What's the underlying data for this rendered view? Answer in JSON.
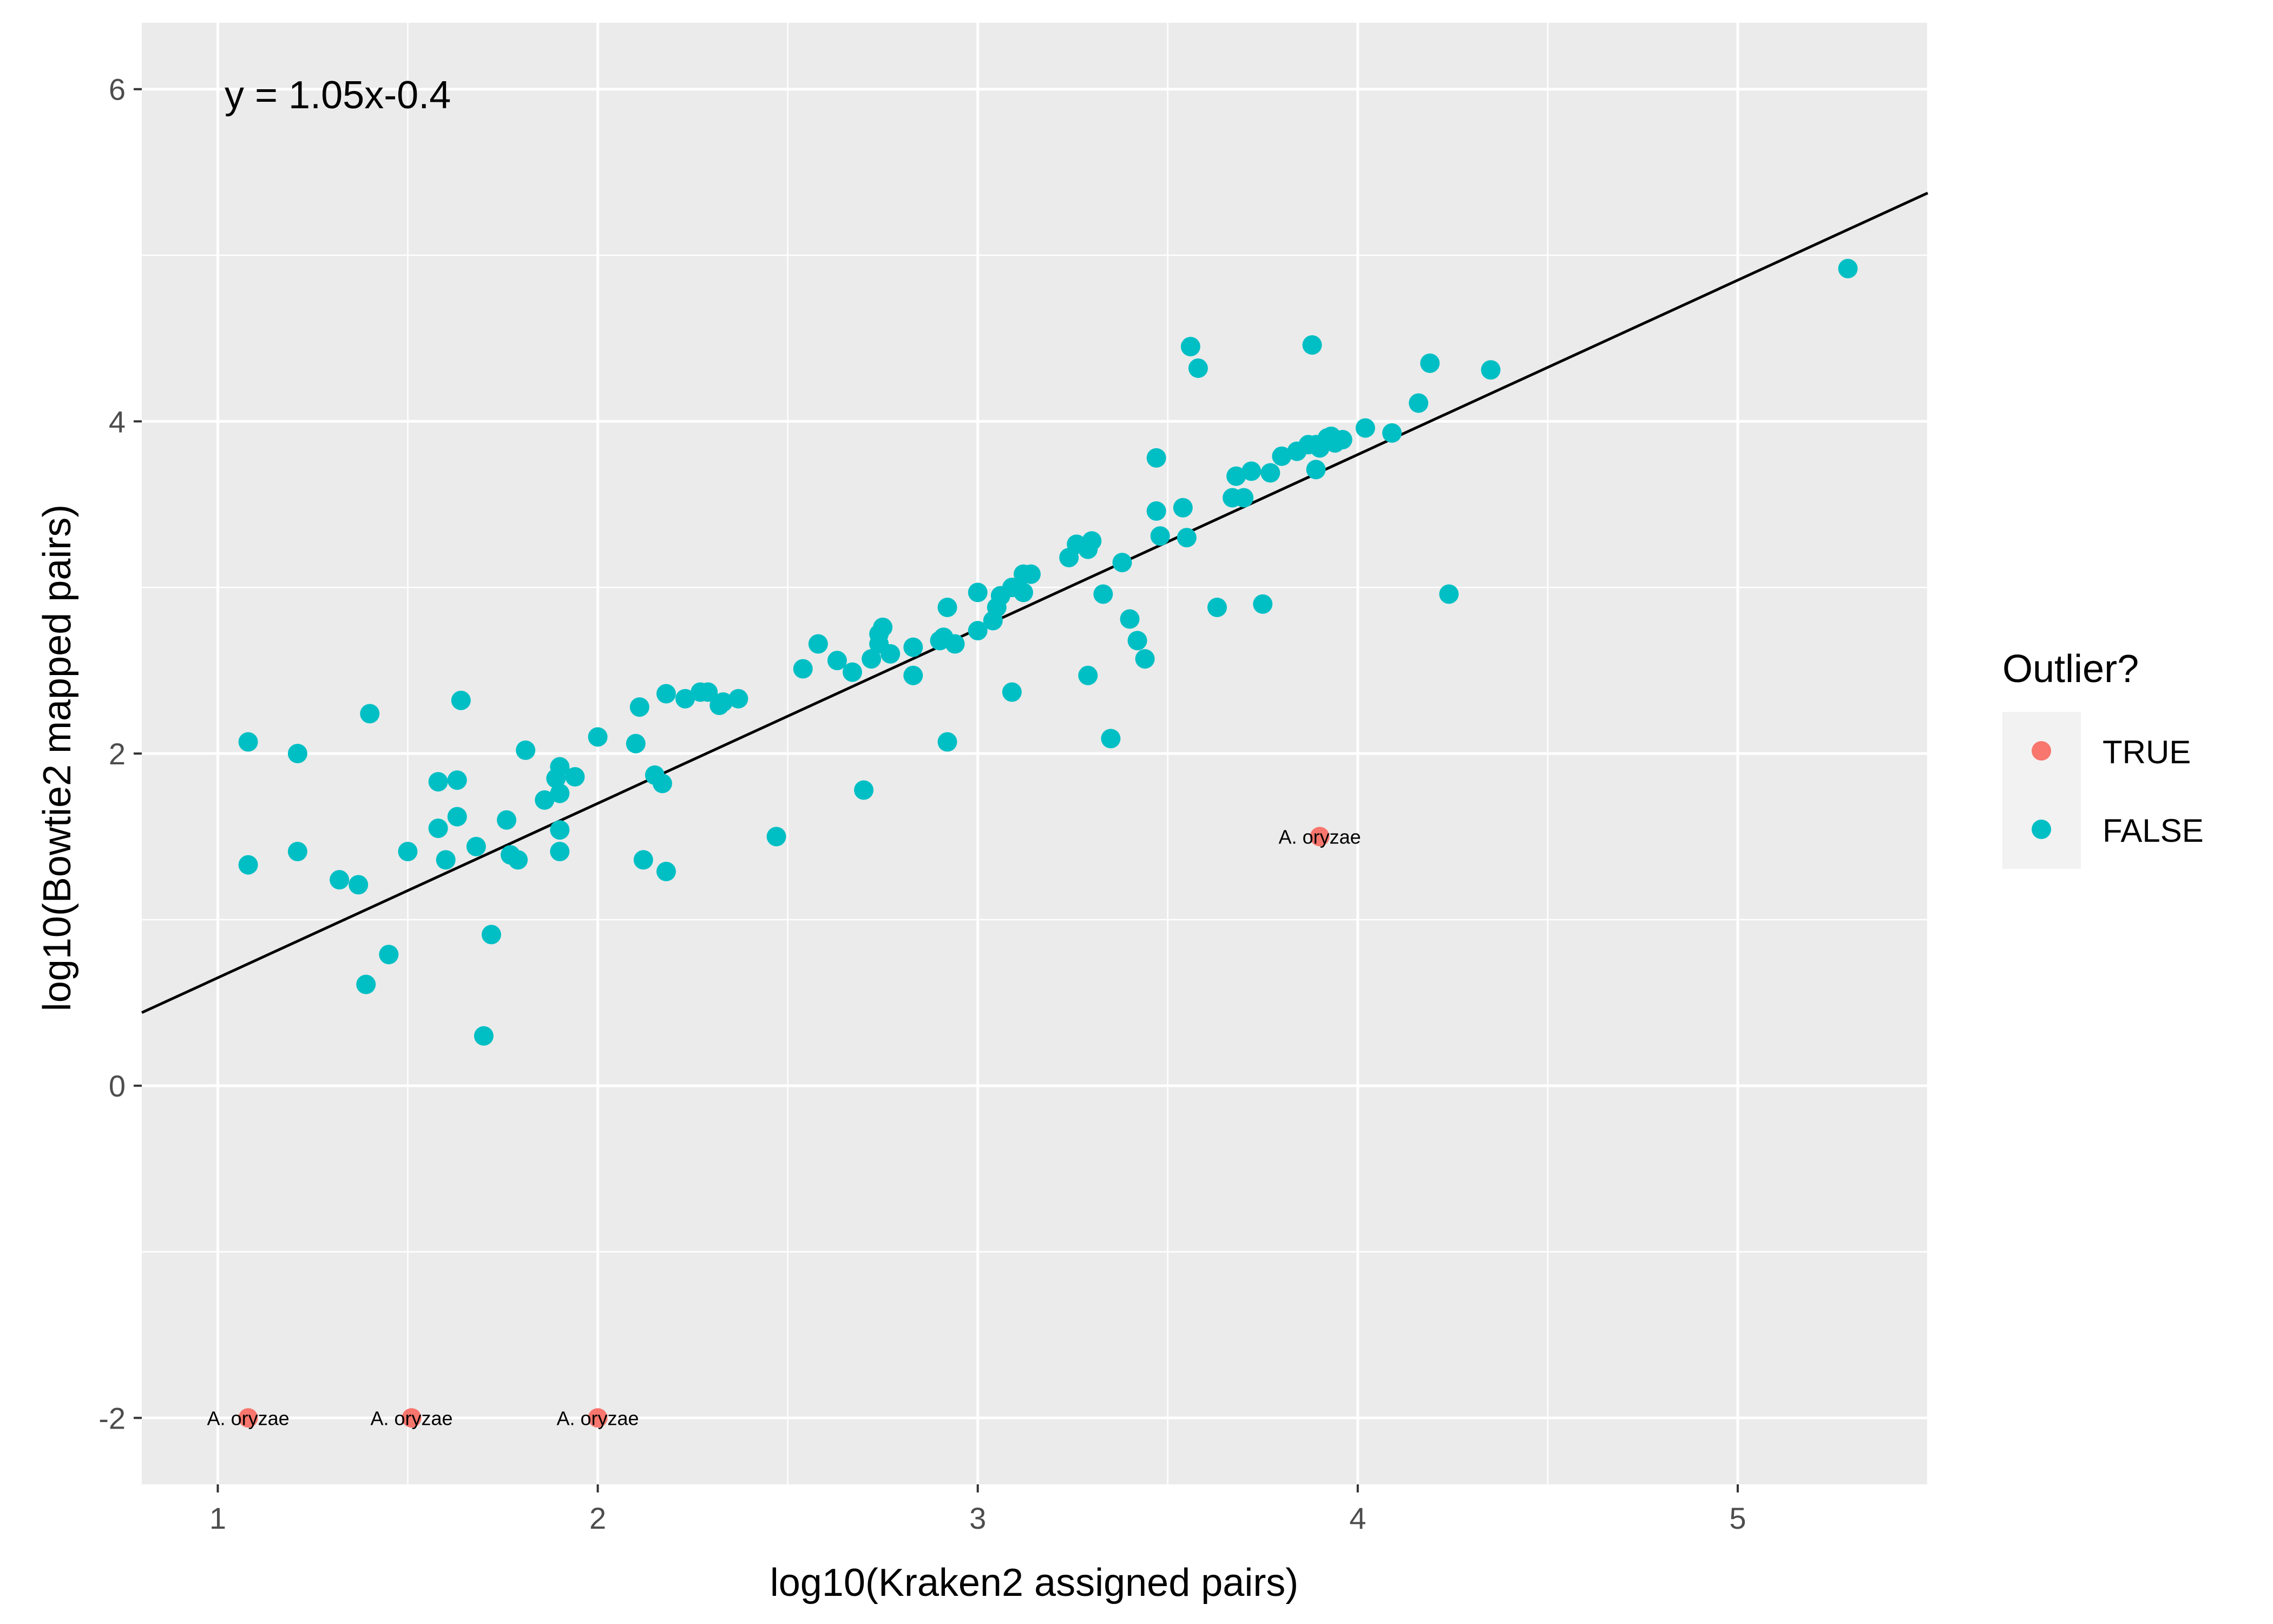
{
  "chart_data": {
    "type": "scatter",
    "xlabel": "log10(Kraken2 assigned pairs)",
    "ylabel": "log10(Bowtie2 mapped pairs)",
    "xlim": [
      0.8,
      5.5
    ],
    "ylim": [
      -2.4,
      6.4
    ],
    "xticks": [
      1,
      2,
      3,
      4,
      5
    ],
    "yticks": [
      -2,
      0,
      2,
      4,
      6
    ],
    "xtick_labels": [
      "1",
      "2",
      "3",
      "4",
      "5"
    ],
    "ytick_labels": [
      "-2",
      "0",
      "2",
      "4",
      "6"
    ],
    "grid": true,
    "legend": {
      "title": "Outlier?",
      "position": "right",
      "entries": [
        {
          "label": "TRUE",
          "color": "#F8766D"
        },
        {
          "label": "FALSE",
          "color": "#00BFC4"
        }
      ]
    },
    "equation": "y = 1.05x-0.4",
    "fit_line": {
      "slope": 1.05,
      "intercept": -0.4
    },
    "series": [
      {
        "name": "TRUE",
        "color": "#F8766D",
        "points": [
          {
            "x": 3.9,
            "y": 1.5,
            "label": "A. oryzae"
          },
          {
            "x": 1.08,
            "y": -2.0,
            "label": "A. oryzae"
          },
          {
            "x": 1.51,
            "y": -2.0,
            "label": "A. oryzae"
          },
          {
            "x": 2.0,
            "y": -2.0,
            "label": "A. oryzae"
          }
        ]
      },
      {
        "name": "FALSE",
        "color": "#00BFC4",
        "points": [
          {
            "x": 1.08,
            "y": 2.07
          },
          {
            "x": 1.08,
            "y": 1.33
          },
          {
            "x": 1.21,
            "y": 2.0
          },
          {
            "x": 1.21,
            "y": 1.41
          },
          {
            "x": 1.32,
            "y": 1.24
          },
          {
            "x": 1.37,
            "y": 1.21
          },
          {
            "x": 1.39,
            "y": 0.61
          },
          {
            "x": 1.4,
            "y": 2.24
          },
          {
            "x": 1.45,
            "y": 0.79
          },
          {
            "x": 1.5,
            "y": 1.41
          },
          {
            "x": 1.58,
            "y": 1.55
          },
          {
            "x": 1.58,
            "y": 1.83
          },
          {
            "x": 1.6,
            "y": 1.36
          },
          {
            "x": 1.63,
            "y": 1.84
          },
          {
            "x": 1.63,
            "y": 1.62
          },
          {
            "x": 1.64,
            "y": 2.32
          },
          {
            "x": 1.68,
            "y": 1.44
          },
          {
            "x": 1.7,
            "y": 0.3
          },
          {
            "x": 1.72,
            "y": 0.91
          },
          {
            "x": 1.76,
            "y": 1.6
          },
          {
            "x": 1.77,
            "y": 1.39
          },
          {
            "x": 1.79,
            "y": 1.36
          },
          {
            "x": 1.81,
            "y": 2.02
          },
          {
            "x": 1.86,
            "y": 1.72
          },
          {
            "x": 1.89,
            "y": 1.85
          },
          {
            "x": 1.9,
            "y": 1.92
          },
          {
            "x": 1.9,
            "y": 1.76
          },
          {
            "x": 1.9,
            "y": 1.54
          },
          {
            "x": 1.9,
            "y": 1.41
          },
          {
            "x": 1.94,
            "y": 1.86
          },
          {
            "x": 2.0,
            "y": 2.1
          },
          {
            "x": 2.1,
            "y": 2.06
          },
          {
            "x": 2.11,
            "y": 2.28
          },
          {
            "x": 2.12,
            "y": 1.36
          },
          {
            "x": 2.15,
            "y": 1.87
          },
          {
            "x": 2.17,
            "y": 1.82
          },
          {
            "x": 2.18,
            "y": 2.36
          },
          {
            "x": 2.18,
            "y": 1.29
          },
          {
            "x": 2.23,
            "y": 2.33
          },
          {
            "x": 2.27,
            "y": 2.37
          },
          {
            "x": 2.29,
            "y": 2.37
          },
          {
            "x": 2.32,
            "y": 2.29
          },
          {
            "x": 2.33,
            "y": 2.31
          },
          {
            "x": 2.37,
            "y": 2.33
          },
          {
            "x": 2.47,
            "y": 1.5
          },
          {
            "x": 2.54,
            "y": 2.51
          },
          {
            "x": 2.58,
            "y": 2.66
          },
          {
            "x": 2.63,
            "y": 2.56
          },
          {
            "x": 2.67,
            "y": 2.49
          },
          {
            "x": 2.7,
            "y": 1.78
          },
          {
            "x": 2.72,
            "y": 2.57
          },
          {
            "x": 2.74,
            "y": 2.72
          },
          {
            "x": 2.74,
            "y": 2.66
          },
          {
            "x": 2.75,
            "y": 2.76
          },
          {
            "x": 2.77,
            "y": 2.6
          },
          {
            "x": 2.83,
            "y": 2.47
          },
          {
            "x": 2.83,
            "y": 2.64
          },
          {
            "x": 2.9,
            "y": 2.68
          },
          {
            "x": 2.91,
            "y": 2.7
          },
          {
            "x": 2.92,
            "y": 2.88
          },
          {
            "x": 2.92,
            "y": 2.07
          },
          {
            "x": 2.94,
            "y": 2.66
          },
          {
            "x": 3.0,
            "y": 2.74
          },
          {
            "x": 3.0,
            "y": 2.97
          },
          {
            "x": 3.04,
            "y": 2.8
          },
          {
            "x": 3.05,
            "y": 2.88
          },
          {
            "x": 3.06,
            "y": 2.95
          },
          {
            "x": 3.09,
            "y": 2.37
          },
          {
            "x": 3.09,
            "y": 3.0
          },
          {
            "x": 3.12,
            "y": 3.08
          },
          {
            "x": 3.12,
            "y": 2.97
          },
          {
            "x": 3.14,
            "y": 3.08
          },
          {
            "x": 3.24,
            "y": 3.18
          },
          {
            "x": 3.26,
            "y": 3.26
          },
          {
            "x": 3.29,
            "y": 3.23
          },
          {
            "x": 3.29,
            "y": 2.47
          },
          {
            "x": 3.3,
            "y": 3.28
          },
          {
            "x": 3.33,
            "y": 2.96
          },
          {
            "x": 3.35,
            "y": 2.09
          },
          {
            "x": 3.38,
            "y": 3.15
          },
          {
            "x": 3.4,
            "y": 2.81
          },
          {
            "x": 3.42,
            "y": 2.68
          },
          {
            "x": 3.44,
            "y": 2.57
          },
          {
            "x": 3.47,
            "y": 3.46
          },
          {
            "x": 3.47,
            "y": 3.78
          },
          {
            "x": 3.48,
            "y": 3.31
          },
          {
            "x": 3.54,
            "y": 3.48
          },
          {
            "x": 3.55,
            "y": 3.3
          },
          {
            "x": 3.56,
            "y": 4.45
          },
          {
            "x": 3.58,
            "y": 4.32
          },
          {
            "x": 3.63,
            "y": 2.88
          },
          {
            "x": 3.67,
            "y": 3.54
          },
          {
            "x": 3.68,
            "y": 3.67
          },
          {
            "x": 3.7,
            "y": 3.54
          },
          {
            "x": 3.72,
            "y": 3.7
          },
          {
            "x": 3.75,
            "y": 2.9
          },
          {
            "x": 3.77,
            "y": 3.69
          },
          {
            "x": 3.8,
            "y": 3.79
          },
          {
            "x": 3.84,
            "y": 3.82
          },
          {
            "x": 3.87,
            "y": 3.86
          },
          {
            "x": 3.88,
            "y": 4.46
          },
          {
            "x": 3.89,
            "y": 3.86
          },
          {
            "x": 3.89,
            "y": 3.71
          },
          {
            "x": 3.9,
            "y": 3.84
          },
          {
            "x": 3.92,
            "y": 3.9
          },
          {
            "x": 3.93,
            "y": 3.91
          },
          {
            "x": 3.94,
            "y": 3.87
          },
          {
            "x": 3.96,
            "y": 3.89
          },
          {
            "x": 4.02,
            "y": 3.96
          },
          {
            "x": 4.09,
            "y": 3.93
          },
          {
            "x": 4.16,
            "y": 4.11
          },
          {
            "x": 4.19,
            "y": 4.35
          },
          {
            "x": 4.24,
            "y": 2.96
          },
          {
            "x": 4.35,
            "y": 4.31
          },
          {
            "x": 5.29,
            "y": 4.92
          }
        ]
      }
    ]
  }
}
